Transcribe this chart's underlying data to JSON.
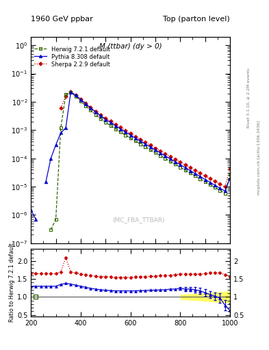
{
  "title_left": "1960 GeV ppbar",
  "title_right": "Top (parton level)",
  "plot_label": "M (ttbar) (dy > 0)",
  "watermark": "(MC_FBA_TTBAR)",
  "right_label_top": "Rivet 3.1.10, ≥ 2.2M events",
  "right_label_bot": "mcplots.cern.ch [arXiv:1306.3436]",
  "ylabel_ratio": "Ratio to Herwig 7.2.1 default",
  "xlim": [
    200,
    1000
  ],
  "ylim_main": [
    1e-07,
    2.0
  ],
  "ylim_ratio": [
    0.45,
    2.35
  ],
  "herwig_color": "#336600",
  "pythia_color": "#0000CC",
  "sherpa_color": "#CC0000",
  "herwig_label": "Herwig 7.2.1 default",
  "pythia_label": "Pythia 8.308 default",
  "sherpa_label": "Sherpa 2.2.9 default",
  "x_bins": [
    200,
    220,
    240,
    260,
    280,
    300,
    320,
    340,
    360,
    380,
    400,
    420,
    440,
    460,
    480,
    500,
    520,
    540,
    560,
    580,
    600,
    620,
    640,
    660,
    680,
    700,
    720,
    740,
    760,
    780,
    800,
    820,
    840,
    860,
    880,
    900,
    920,
    940,
    960,
    980,
    1000
  ],
  "herwig_y": [
    0,
    0,
    0,
    0,
    3e-07,
    7e-07,
    0.0012,
    0.018,
    0.022,
    0.0155,
    0.0105,
    0.0072,
    0.005,
    0.0035,
    0.00255,
    0.0019,
    0.00145,
    0.0011,
    0.00085,
    0.00066,
    0.00052,
    0.00041,
    0.00032,
    0.000255,
    0.0002,
    0.00016,
    0.000125,
    0.0001,
    7.8e-05,
    6.2e-05,
    4.9e-05,
    3.85e-05,
    3.05e-05,
    2.4e-05,
    1.9e-05,
    1.5e-05,
    1.18e-05,
    9.3e-06,
    7.4e-06,
    5.9e-06,
    2.8e-05
  ],
  "pythia_y": [
    1.5e-06,
    7e-07,
    0,
    1.5e-05,
    0.0001,
    0.0003,
    0.0008,
    0.0012,
    0.022,
    0.017,
    0.012,
    0.0085,
    0.006,
    0.0043,
    0.0032,
    0.0024,
    0.00185,
    0.00142,
    0.0011,
    0.00086,
    0.00067,
    0.00052,
    0.00041,
    0.00032,
    0.000252,
    0.000198,
    0.000156,
    0.000122,
    9.6e-05,
    7.6e-05,
    6e-05,
    4.7e-05,
    3.7e-05,
    2.9e-05,
    2.3e-05,
    1.8e-05,
    1.42e-05,
    1.12e-05,
    8.8e-06,
    7e-06,
    2e-05
  ],
  "sherpa_y": [
    0,
    0,
    0,
    0,
    0,
    0,
    0.006,
    0.016,
    0.023,
    0.0178,
    0.0128,
    0.009,
    0.0064,
    0.0046,
    0.0035,
    0.00265,
    0.00205,
    0.0016,
    0.00124,
    0.00097,
    0.00076,
    0.000595,
    0.00047,
    0.00037,
    0.000293,
    0.000232,
    0.000184,
    0.000146,
    0.000116,
    9.3e-05,
    7.4e-05,
    5.9e-05,
    4.7e-05,
    3.75e-05,
    3e-05,
    2.4e-05,
    1.92e-05,
    1.53e-05,
    1.23e-05,
    9.8e-06,
    4.5e-05
  ],
  "ratio_pythia": [
    1.3,
    1.3,
    1.3,
    1.3,
    1.3,
    1.3,
    1.35,
    1.38,
    1.36,
    1.33,
    1.3,
    1.27,
    1.24,
    1.22,
    1.2,
    1.19,
    1.18,
    1.17,
    1.17,
    1.17,
    1.17,
    1.17,
    1.18,
    1.18,
    1.19,
    1.19,
    1.2,
    1.2,
    1.22,
    1.22,
    1.24,
    1.22,
    1.22,
    1.2,
    1.17,
    1.12,
    1.07,
    1.02,
    0.97,
    0.77,
    0.62
  ],
  "ratio_sherpa": [
    1.65,
    1.65,
    1.65,
    1.65,
    1.65,
    1.65,
    1.7,
    2.1,
    1.7,
    1.67,
    1.64,
    1.62,
    1.6,
    1.58,
    1.57,
    1.57,
    1.56,
    1.55,
    1.55,
    1.55,
    1.55,
    1.56,
    1.57,
    1.57,
    1.58,
    1.58,
    1.6,
    1.6,
    1.6,
    1.62,
    1.64,
    1.64,
    1.64,
    1.64,
    1.64,
    1.65,
    1.67,
    1.67,
    1.67,
    1.62,
    1.57
  ],
  "ratio_herwig_band_x": [
    800,
    820,
    840,
    860,
    880,
    900,
    920,
    940,
    960,
    980,
    1000
  ],
  "ratio_herwig_band_lo": [
    0.93,
    0.92,
    0.91,
    0.9,
    0.89,
    0.88,
    0.87,
    0.86,
    0.85,
    0.84,
    0.83
  ],
  "ratio_herwig_band_hi": [
    1.07,
    1.08,
    1.09,
    1.1,
    1.11,
    1.12,
    1.13,
    1.14,
    1.15,
    1.16,
    1.17
  ],
  "pythia_err_x": [
    800,
    820,
    840,
    860,
    880,
    900,
    920,
    940,
    960,
    980,
    1000
  ],
  "pythia_err": [
    0.04,
    0.05,
    0.06,
    0.07,
    0.08,
    0.09,
    0.1,
    0.11,
    0.13,
    0.15,
    0.2
  ]
}
